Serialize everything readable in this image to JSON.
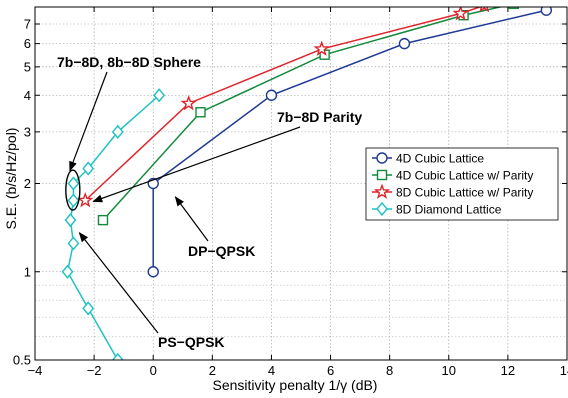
{
  "chart_data": {
    "type": "line",
    "xlabel": "Sensitivity penalty 1/γ (dB)",
    "ylabel": "S.E. (b/s/Hz/pol)",
    "xlim": [
      -4,
      14
    ],
    "ylim": [
      0.5,
      8
    ],
    "yscale": "log",
    "grid": true,
    "legend_position": "center-right",
    "x_ticks": [
      -4,
      -2,
      0,
      2,
      4,
      6,
      8,
      10,
      12,
      14
    ],
    "y_ticks": [
      0.5,
      1,
      2,
      3,
      4,
      5,
      6,
      7
    ],
    "x_tick_labels": [
      "−4",
      "−2",
      "0",
      "2",
      "4",
      "6",
      "8",
      "10",
      "12",
      "14"
    ],
    "y_tick_labels": [
      "0.5",
      "1",
      "2",
      "3",
      "4",
      "5",
      "6",
      "7"
    ],
    "series": [
      {
        "name": "4D Cubic Lattice",
        "color": "#1f3a93",
        "marker": "circle",
        "points": [
          [
            0,
            1
          ],
          [
            0,
            2
          ],
          [
            4,
            4
          ],
          [
            8.5,
            6
          ],
          [
            13.3,
            7.8
          ]
        ]
      },
      {
        "name": "4D Cubic Lattice w/ Parity",
        "color": "#138a3b",
        "marker": "square",
        "points": [
          [
            -1.7,
            1.5
          ],
          [
            1.6,
            3.5
          ],
          [
            5.8,
            5.5
          ],
          [
            10.5,
            7.5
          ],
          [
            12.2,
            8.2
          ]
        ]
      },
      {
        "name": "8D Cubic Lattice w/ Parity",
        "color": "#e0242b",
        "marker": "star",
        "points": [
          [
            -2.3,
            1.75
          ],
          [
            1.2,
            3.75
          ],
          [
            5.7,
            5.75
          ],
          [
            10.4,
            7.6
          ],
          [
            11.2,
            8.1
          ]
        ]
      },
      {
        "name": "8D Diamond Lattice",
        "color": "#1fc2c2",
        "marker": "diamond",
        "points": [
          [
            -1.2,
            0.5
          ],
          [
            -2.2,
            0.75
          ],
          [
            -2.9,
            1.0
          ],
          [
            -2.7,
            1.25
          ],
          [
            -2.8,
            1.5
          ],
          [
            -2.7,
            1.75
          ],
          [
            -2.7,
            2.0
          ],
          [
            -2.2,
            2.25
          ],
          [
            -1.2,
            3.0
          ],
          [
            0.2,
            4.0
          ]
        ]
      }
    ],
    "annotations": [
      {
        "label": "7b−8D, 8b−8D Sphere"
      },
      {
        "label": "7b−8D Parity"
      },
      {
        "label": "DP−QPSK"
      },
      {
        "label": "PS−QPSK"
      }
    ]
  }
}
